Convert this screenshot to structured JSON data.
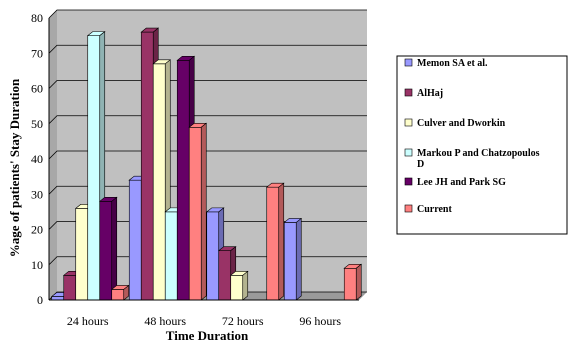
{
  "chart_data": {
    "type": "bar",
    "title": "",
    "xlabel": "Time Duration",
    "ylabel": "%age of patients' Stay Duration",
    "ylim": [
      0,
      80
    ],
    "yticks": [
      0,
      10,
      20,
      30,
      40,
      50,
      60,
      70,
      80
    ],
    "categories": [
      "24 hours",
      "48 hours",
      "72 hours",
      "96 hours"
    ],
    "grid": true,
    "legend_position": "right",
    "series": [
      {
        "name": "Memon SA et al.",
        "color": "#9999ff",
        "values": [
          1,
          34,
          25,
          22
        ]
      },
      {
        "name": "AlHaj",
        "color": "#993366",
        "values": [
          7,
          76,
          14,
          0
        ]
      },
      {
        "name": "Culver and Dworkin",
        "color": "#ffffcc",
        "values": [
          26,
          67,
          7,
          0
        ]
      },
      {
        "name": "Markou P and Chatzopoulos D",
        "color": "#ccffff",
        "values": [
          75,
          25,
          0,
          0
        ]
      },
      {
        "name": "Lee JH and Park SG",
        "color": "#660066",
        "values": [
          28,
          68,
          0,
          0
        ]
      },
      {
        "name": "Current",
        "color": "#ff8080",
        "values": [
          3,
          49,
          32,
          9
        ]
      }
    ]
  }
}
